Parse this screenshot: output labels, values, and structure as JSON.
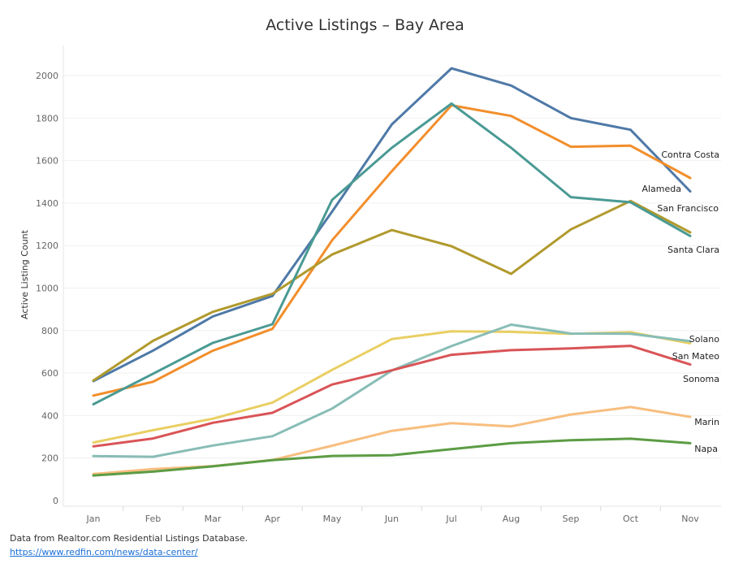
{
  "chart_data": {
    "type": "line",
    "title": "Active Listings – Bay Area",
    "xlabel": "",
    "ylabel": "Active Listing Count",
    "categories": [
      "Jan",
      "Feb",
      "Mar",
      "Apr",
      "May",
      "Jun",
      "Jul",
      "Aug",
      "Sep",
      "Oct",
      "Nov"
    ],
    "ylim": [
      0,
      2100
    ],
    "yticks": [
      0,
      200,
      400,
      600,
      800,
      1000,
      1200,
      1400,
      1600,
      1800,
      2000
    ],
    "grid": true,
    "legend": "direct labels at line ends (right)",
    "series": [
      {
        "name": "Contra Costa",
        "color": "#4e79a7",
        "values": [
          562,
          706,
          866,
          963,
          1360,
          1770,
          2034,
          1953,
          1800,
          1745,
          1455
        ]
      },
      {
        "name": "Alameda",
        "color": "#f28e2b",
        "values": [
          494,
          559,
          705,
          808,
          1225,
          1550,
          1860,
          1810,
          1665,
          1670,
          1518
        ]
      },
      {
        "name": "San Francisco",
        "color": "#b19a2e",
        "values": [
          565,
          752,
          888,
          973,
          1158,
          1273,
          1197,
          1067,
          1276,
          1410,
          1262
        ]
      },
      {
        "name": "Santa Clara",
        "color": "#4a9a94",
        "values": [
          453,
          597,
          742,
          830,
          1415,
          1660,
          1868,
          1660,
          1428,
          1404,
          1245
        ]
      },
      {
        "name": "Solano",
        "color": "#e9cf63",
        "values": [
          273,
          331,
          385,
          461,
          615,
          760,
          796,
          794,
          785,
          792,
          740
        ]
      },
      {
        "name": "San Mateo",
        "color": "#88bdb6",
        "values": [
          209,
          206,
          259,
          303,
          433,
          612,
          727,
          828,
          786,
          785,
          750
        ]
      },
      {
        "name": "Sonoma",
        "color": "#d95457",
        "values": [
          255,
          292,
          366,
          413,
          546,
          613,
          686,
          708,
          716,
          728,
          640
        ]
      },
      {
        "name": "Marin",
        "color": "#f7be7f",
        "values": [
          125,
          148,
          162,
          191,
          258,
          328,
          364,
          349,
          405,
          440,
          394
        ]
      },
      {
        "name": "Napa",
        "color": "#5c9c45",
        "values": [
          118,
          136,
          161,
          190,
          210,
          213,
          242,
          270,
          284,
          291,
          270
        ]
      }
    ]
  },
  "footer": {
    "source_note": "Data from Realtor.com Residential Listings Database.",
    "source_link": "https://www.redfin.com/news/data-center/"
  }
}
